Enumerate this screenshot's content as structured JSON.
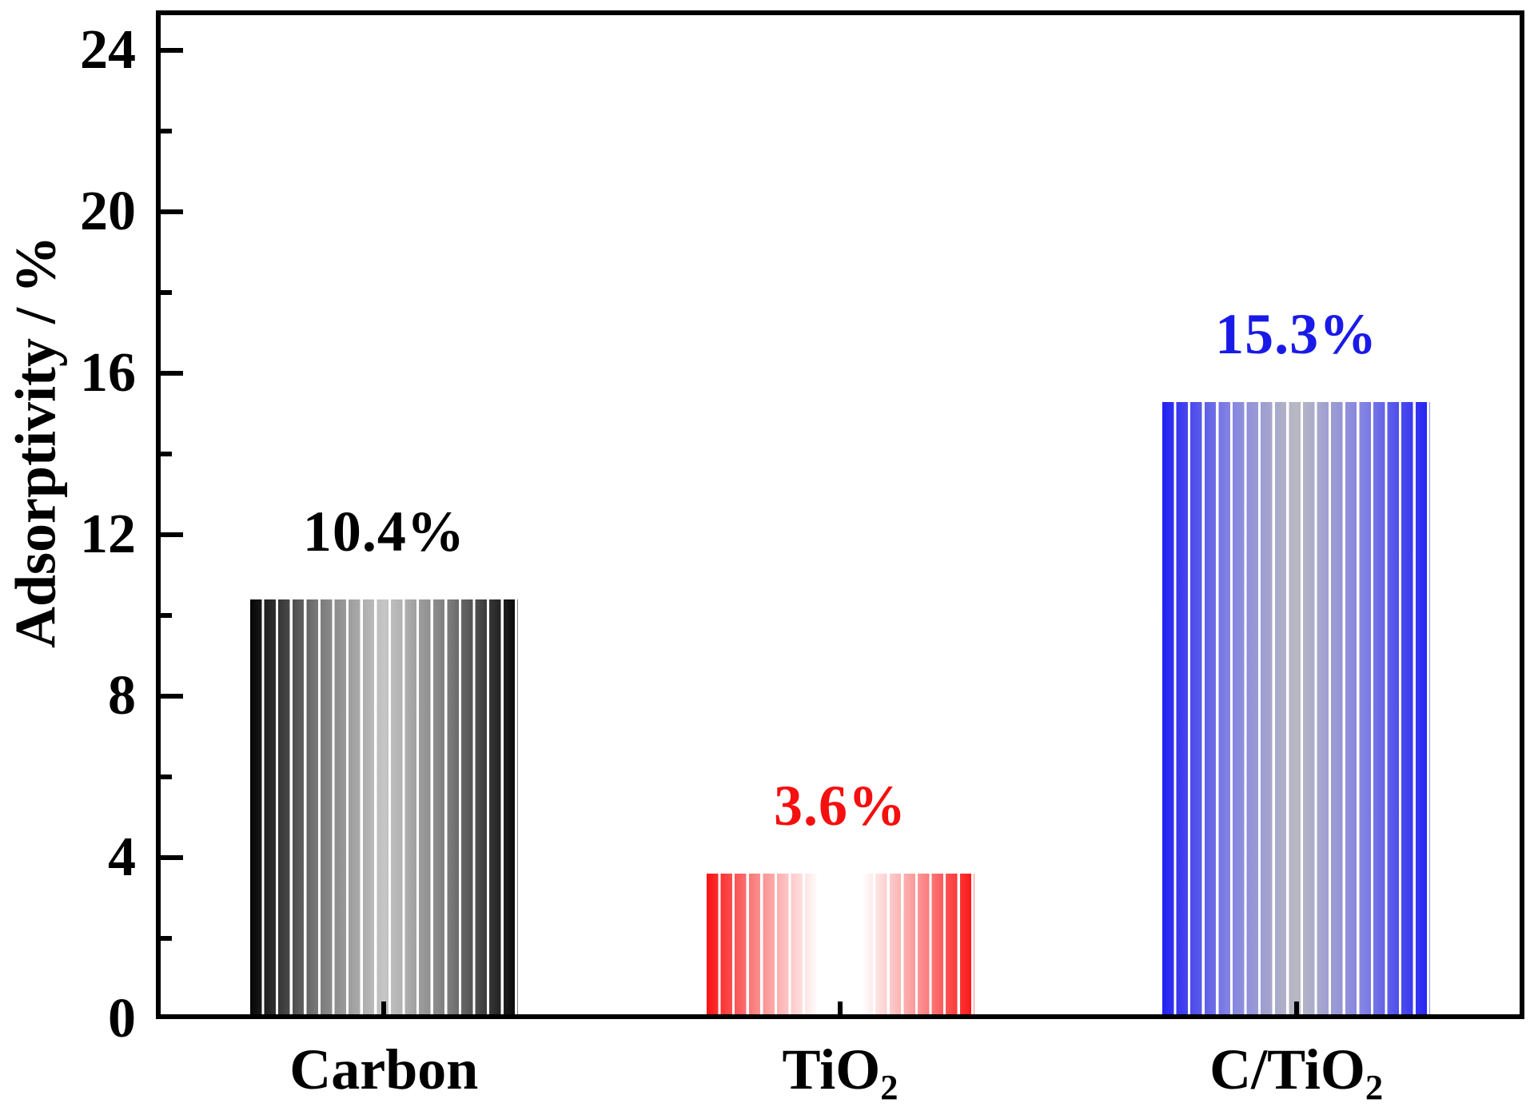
{
  "chart_data": {
    "type": "bar",
    "title": "",
    "ylabel": "Adsorptivity / %",
    "xlabel": "",
    "ylim": [
      0,
      25
    ],
    "yticks_major": [
      0,
      4,
      8,
      12,
      16,
      20,
      24
    ],
    "yticks_minor": [
      2,
      6,
      10,
      14,
      18,
      22
    ],
    "grid": false,
    "legend": null,
    "categories": [
      "Carbon",
      "TiO2",
      "C/TiO2"
    ],
    "category_labels": [
      {
        "base": "Carbon",
        "sub": ""
      },
      {
        "base": "TiO",
        "sub": "2"
      },
      {
        "base": "C/TiO",
        "sub": "2"
      }
    ],
    "values": [
      10.4,
      3.6,
      15.3
    ],
    "value_labels": [
      "10.4%",
      "3.6%",
      "15.3%"
    ],
    "value_label_colors": [
      "#000000",
      "#f50f0f",
      "#1a1ae8"
    ],
    "bar_gradients": [
      [
        [
          "#050505",
          0
        ],
        [
          "#787878",
          25
        ],
        [
          "#c6c6c6",
          50
        ],
        [
          "#787878",
          75
        ],
        [
          "#050505",
          100
        ]
      ],
      [
        [
          "#fb1212",
          0
        ],
        [
          "#fb8f8f",
          20
        ],
        [
          "#ffffff",
          42
        ],
        [
          "#ffffff",
          58
        ],
        [
          "#fb8f8f",
          80
        ],
        [
          "#fb1212",
          100
        ]
      ],
      [
        [
          "#2121f3",
          0
        ],
        [
          "#8383e3",
          25
        ],
        [
          "#b9b9c2",
          50
        ],
        [
          "#8383e3",
          75
        ],
        [
          "#2121f3",
          100
        ]
      ]
    ],
    "axis_color": "#000000",
    "stripe_color": "#ffffff"
  }
}
